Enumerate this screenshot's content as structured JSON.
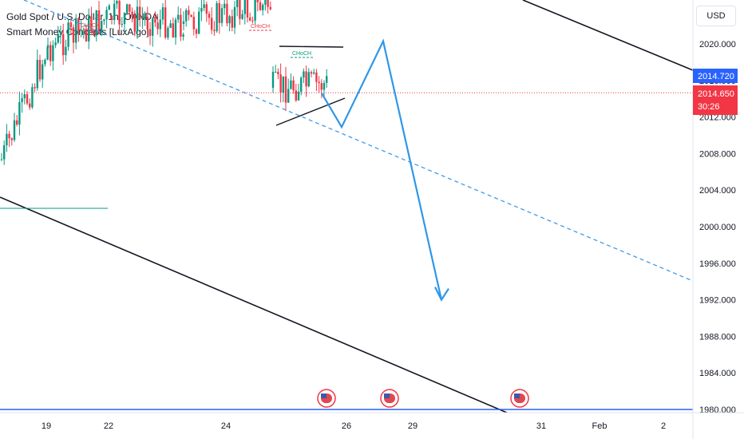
{
  "legend": {
    "line1": "Gold Spot / U.S. Dollar, 1h, OANDA",
    "line2": "Smart Money Concepts [LuxAlgo]"
  },
  "currency": "USD",
  "colors": {
    "up": "#089981",
    "down": "#f23645",
    "projection": "#2f97e8",
    "trend": "#131722",
    "blue_tag": "#2962ff",
    "red_tag": "#f23645",
    "dashed": "#3d9be9"
  },
  "chart_data": {
    "type": "line",
    "instrument": "Gold Spot / U.S. Dollar, 1h, OANDA",
    "ylim": [
      1980,
      2022.5
    ],
    "y_ticks": [
      2020,
      2016,
      2012,
      2008,
      2004,
      2000,
      1996,
      1992,
      1988,
      1984,
      1980
    ],
    "y_tick_labels": [
      "2020.000",
      "2016.000",
      "2012.000",
      "2008.000",
      "2004.000",
      "2000.000",
      "1996.000",
      "1992.000",
      "1988.000",
      "1984.000",
      "1980.000"
    ],
    "x_ticks": [
      "19",
      "22",
      "24",
      "26",
      "29",
      "31",
      "Feb",
      "2"
    ],
    "price_tags": [
      {
        "label": "2014.720",
        "value": 2014.72,
        "kind": "blue"
      },
      {
        "label": "2014.650",
        "countdown": "30:26",
        "value": 2014.65,
        "kind": "red"
      }
    ],
    "choch_labels": [
      "CHoCH",
      "CHoCH",
      "CHoCH"
    ],
    "series": [
      {
        "kind": "projection",
        "points": [
          [
            403,
            2014.6
          ],
          [
            428,
            2010.9
          ],
          [
            480,
            2020.3
          ],
          [
            553,
            1992.0
          ]
        ]
      }
    ],
    "grid": false,
    "legend_position": "top-left"
  }
}
